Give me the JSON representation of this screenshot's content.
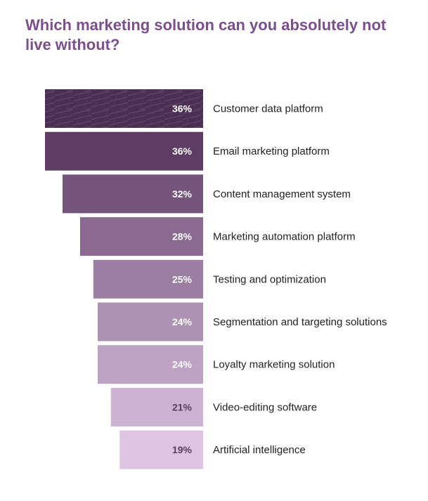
{
  "title": "Which marketing solution can you absolutely not live without?",
  "chart_data": {
    "type": "bar",
    "orientation": "horizontal-funnel",
    "title": "Which marketing solution can you absolutely not live without?",
    "categories": [
      "Customer data platform",
      "Email marketing platform",
      "Content management system",
      "Marketing automation platform",
      "Testing and optimization",
      "Segmentation and targeting solutions",
      "Loyalty marketing solution",
      "Video-editing software",
      "Artificial intelligence"
    ],
    "values": [
      36,
      36,
      32,
      28,
      25,
      24,
      24,
      21,
      19
    ],
    "value_labels": [
      "36%",
      "36%",
      "32%",
      "28%",
      "25%",
      "24%",
      "24%",
      "21%",
      "19%"
    ],
    "unit": "%",
    "xlim": [
      0,
      36
    ],
    "colors": [
      "#4b2f52",
      "#5d3d63",
      "#74547a",
      "#8a6a90",
      "#9b7ea2",
      "#ad92b4",
      "#bda2c4",
      "#ccb2d2",
      "#dcc4e2"
    ],
    "value_label_colors": [
      "#ffffff",
      "#ffffff",
      "#ffffff",
      "#ffffff",
      "#ffffff",
      "#ffffff",
      "#ffffff",
      "#5a3d60",
      "#5a3d60"
    ],
    "patterned_first_bar": true
  }
}
